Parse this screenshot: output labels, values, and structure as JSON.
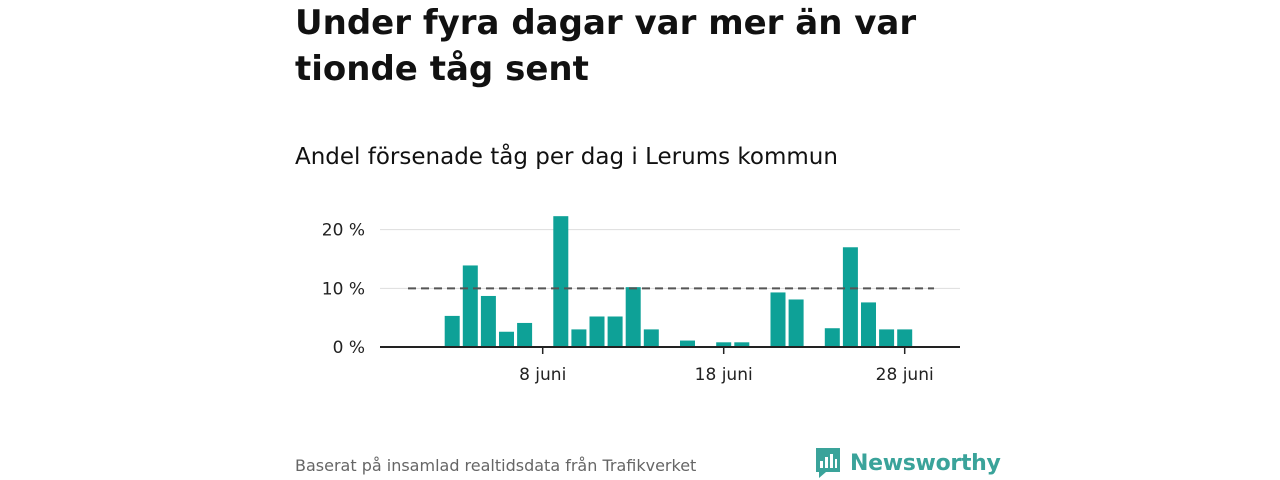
{
  "header": {
    "title": "Under fyra dagar var mer än var tionde tåg sent",
    "subtitle": "Andel försenade tåg per dag i Lerums kommun"
  },
  "footer": {
    "source": "Baserat på insamlad realtidsdata från Trafikverket",
    "brand": "Newsworthy"
  },
  "colors": {
    "bar": "#0ea197",
    "reference_line": "#555555",
    "grid": "#dddddd",
    "axis": "#222222",
    "brand": "#3aa39a"
  },
  "chart_data": {
    "type": "bar",
    "title": "Andel försenade tåg per dag i Lerums kommun",
    "xlabel": "",
    "ylabel": "",
    "unit": "%",
    "x_start_day": 1,
    "x_end_day": 30,
    "month_label": "juni",
    "days": [
      1,
      2,
      3,
      4,
      5,
      6,
      7,
      8,
      9,
      10,
      11,
      12,
      13,
      14,
      15,
      16,
      17,
      18,
      19,
      20,
      21,
      22,
      23,
      24,
      25,
      26,
      27,
      28,
      29,
      30
    ],
    "values": [
      0,
      0,
      5.3,
      13.9,
      8.7,
      2.6,
      4.1,
      0,
      22.3,
      3.0,
      5.2,
      5.2,
      10.2,
      3.0,
      0,
      1.1,
      0,
      0.8,
      0.8,
      0,
      9.3,
      8.1,
      0,
      3.2,
      17.0,
      7.6,
      3.0,
      3.0,
      0,
      0
    ],
    "ylim": [
      0,
      22.5
    ],
    "y_ticks": [
      0,
      10,
      20
    ],
    "y_tick_labels": [
      "0 %",
      "10 %",
      "20 %"
    ],
    "x_ticks": [
      8,
      18,
      28
    ],
    "x_tick_labels": [
      "8 juni",
      "18 juni",
      "28 juni"
    ],
    "reference_line": {
      "value": 10,
      "style": "dashed"
    },
    "grid": true,
    "legend": "none"
  }
}
